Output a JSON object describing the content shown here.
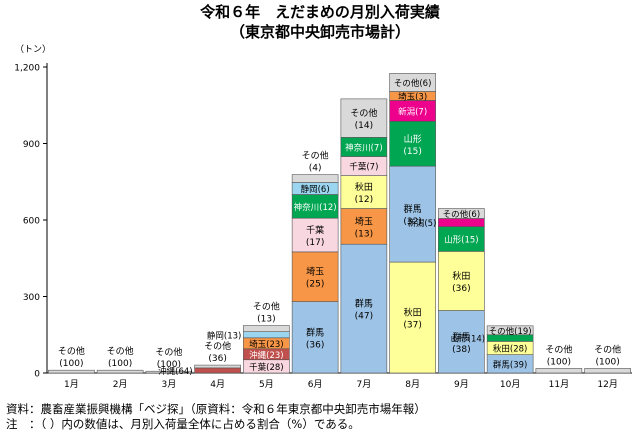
{
  "title": "令和６年　えだまめの月別入荷実績",
  "subtitle": "（東京都中央卸売市場計）",
  "chart_data": {
    "type": "bar",
    "stacked": true,
    "y_unit": "（トン）",
    "ylim": [
      0,
      1200
    ],
    "yticks": [
      "0",
      "300",
      "600",
      "900",
      "1,200"
    ],
    "grid": false,
    "categories": [
      "1月",
      "2月",
      "3月",
      "4月",
      "5月",
      "6月",
      "7月",
      "8月",
      "9月",
      "10月",
      "11月",
      "12月"
    ],
    "bars": [
      {
        "month": "1月",
        "segments": [
          {
            "name": "その他",
            "pct": "(100)",
            "value": 11,
            "color": "#d9d9d9"
          }
        ]
      },
      {
        "month": "2月",
        "segments": [
          {
            "name": "その他",
            "pct": "(100)",
            "value": 11,
            "color": "#d9d9d9"
          }
        ]
      },
      {
        "month": "3月",
        "segments": [
          {
            "name": "その他",
            "pct": "(100)",
            "value": 7,
            "color": "#d9d9d9"
          }
        ]
      },
      {
        "month": "4月",
        "segments": [
          {
            "name": "沖縄",
            "pct": "(64)",
            "value": 20,
            "color": "#c0504d"
          },
          {
            "name": "その他",
            "pct": "(36)",
            "value": 11,
            "color": "#d9d9d9"
          }
        ]
      },
      {
        "month": "5月",
        "segments": [
          {
            "name": "千葉",
            "pct": "(28)",
            "value": 52,
            "color": "#f8d7e0"
          },
          {
            "name": "沖縄",
            "pct": "(23)",
            "value": 43,
            "color": "#c0504d"
          },
          {
            "name": "埼玉",
            "pct": "(23)",
            "value": 43,
            "color": "#f79646"
          },
          {
            "name": "静岡",
            "pct": "(13)",
            "value": 24,
            "color": "#9bd5ef"
          },
          {
            "name": "その他",
            "pct": "(13)",
            "value": 24,
            "color": "#d9d9d9"
          }
        ]
      },
      {
        "month": "6月",
        "segments": [
          {
            "name": "群馬",
            "pct": "(36)",
            "value": 280,
            "color": "#9dc3e6"
          },
          {
            "name": "埼玉",
            "pct": "(25)",
            "value": 195,
            "color": "#f79646"
          },
          {
            "name": "千葉",
            "pct": "(17)",
            "value": 132,
            "color": "#f8d7e0"
          },
          {
            "name": "神奈川",
            "pct": "(12)",
            "value": 93,
            "color": "#00a651"
          },
          {
            "name": "静岡",
            "pct": "(6)",
            "value": 47,
            "color": "#9bd5ef"
          },
          {
            "name": "その他",
            "pct": "(4)",
            "value": 31,
            "color": "#d9d9d9"
          }
        ]
      },
      {
        "month": "7月",
        "segments": [
          {
            "name": "群馬",
            "pct": "(47)",
            "value": 505,
            "color": "#9dc3e6"
          },
          {
            "name": "埼玉",
            "pct": "(13)",
            "value": 140,
            "color": "#f79646"
          },
          {
            "name": "秋田",
            "pct": "(12)",
            "value": 129,
            "color": "#ffff99"
          },
          {
            "name": "千葉",
            "pct": "(7)",
            "value": 75,
            "color": "#f8d7e0"
          },
          {
            "name": "神奈川",
            "pct": "(7)",
            "value": 75,
            "color": "#00a651"
          },
          {
            "name": "その他",
            "pct": "(14)",
            "value": 151,
            "color": "#d9d9d9"
          }
        ]
      },
      {
        "month": "8月",
        "segments": [
          {
            "name": "秋田",
            "pct": "(37)",
            "value": 435,
            "color": "#ffff99"
          },
          {
            "name": "群馬",
            "pct": "(32)",
            "value": 376,
            "color": "#9dc3e6"
          },
          {
            "name": "山形",
            "pct": "(15)",
            "value": 176,
            "color": "#00a651"
          },
          {
            "name": "新潟",
            "pct": "(7)",
            "value": 82,
            "color": "#ec008c"
          },
          {
            "name": "埼玉",
            "pct": "(3)",
            "value": 35,
            "color": "#f79646"
          },
          {
            "name": "その他",
            "pct": "(6)",
            "value": 71,
            "color": "#d9d9d9"
          }
        ]
      },
      {
        "month": "9月",
        "segments": [
          {
            "name": "群馬",
            "pct": "(38)",
            "value": 245,
            "color": "#9dc3e6"
          },
          {
            "name": "秋田",
            "pct": "(36)",
            "value": 232,
            "color": "#ffff99"
          },
          {
            "name": "山形",
            "pct": "(15)",
            "value": 97,
            "color": "#00a651"
          },
          {
            "name": "新潟",
            "pct": "(5)",
            "value": 32,
            "color": "#ec008c"
          },
          {
            "name": "その他",
            "pct": "(6)",
            "value": 39,
            "color": "#d9d9d9"
          }
        ]
      },
      {
        "month": "10月",
        "segments": [
          {
            "name": "群馬",
            "pct": "(39)",
            "value": 72,
            "color": "#9dc3e6"
          },
          {
            "name": "秋田",
            "pct": "(28)",
            "value": 52,
            "color": "#ffff99"
          },
          {
            "name": "山形",
            "pct": "(14)",
            "value": 26,
            "color": "#00a651"
          },
          {
            "name": "その他",
            "pct": "(19)",
            "value": 35,
            "color": "#d9d9d9"
          }
        ]
      },
      {
        "month": "11月",
        "segments": [
          {
            "name": "その他",
            "pct": "(100)",
            "value": 18,
            "color": "#d9d9d9"
          }
        ]
      },
      {
        "month": "12月",
        "segments": [
          {
            "name": "その他",
            "pct": "(100)",
            "value": 18,
            "color": "#d9d9d9"
          }
        ]
      }
    ]
  },
  "footnotes": {
    "source": "資料：農畜産業振興機構「ベジ探」（原資料：令和６年東京都中央卸売市場年報）",
    "note": "注　：（ ）内の数値は、月別入荷量全体に占める割合（%）である。"
  }
}
